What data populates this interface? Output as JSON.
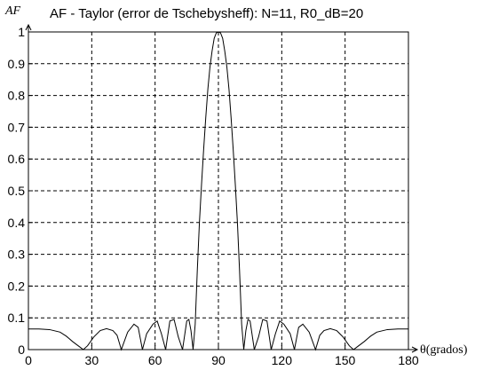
{
  "chart_data": {
    "type": "line",
    "title": "AF - Taylor (error de Tschebysheff): N=11, R0_dB=20",
    "xlabel": "θ(grados)",
    "ylabel": "AF",
    "xlim": [
      0,
      180
    ],
    "ylim": [
      0,
      1
    ],
    "x_ticks": [
      0,
      30,
      60,
      90,
      120,
      150,
      180
    ],
    "y_ticks": [
      0,
      0.1,
      0.2,
      0.3,
      0.4,
      0.5,
      0.6,
      0.7,
      0.8,
      0.9,
      1
    ],
    "x_tick_labels": [
      "0",
      "30",
      "60",
      "90",
      "120",
      "150",
      "180"
    ],
    "y_tick_labels": [
      "0",
      "0.1",
      "0.2",
      "0.3",
      "0.4",
      "0.5",
      "0.6",
      "0.7",
      "0.8",
      "0.9",
      "1"
    ],
    "grid": true,
    "line_color": "#000000",
    "series": [
      {
        "x": [
          0,
          5,
          10,
          15,
          18,
          21,
          24,
          26,
          28,
          31,
          34,
          37,
          40,
          42,
          44,
          47,
          50,
          52,
          54,
          56,
          59,
          61,
          63,
          65,
          67,
          69,
          71,
          73,
          75,
          76,
          77,
          78,
          79,
          80,
          81,
          82,
          83,
          84,
          85,
          86,
          87,
          88,
          89,
          90,
          91,
          92,
          93,
          94,
          95,
          96,
          97,
          98,
          99,
          100,
          101,
          102,
          103,
          104,
          105,
          107,
          109,
          111,
          113,
          115,
          117,
          119,
          121,
          124,
          126,
          128,
          130,
          133,
          136,
          138,
          140,
          143,
          146,
          149,
          152,
          154,
          156,
          159,
          162,
          165,
          170,
          175,
          180
        ],
        "y": [
          0.065,
          0.065,
          0.063,
          0.055,
          0.042,
          0.025,
          0.01,
          0.0,
          0.012,
          0.04,
          0.06,
          0.066,
          0.06,
          0.045,
          0.0,
          0.055,
          0.08,
          0.07,
          0.0,
          0.05,
          0.08,
          0.09,
          0.05,
          0.0,
          0.09,
          0.095,
          0.04,
          0.0,
          0.09,
          0.095,
          0.06,
          0.0,
          0.08,
          0.25,
          0.4,
          0.52,
          0.63,
          0.73,
          0.82,
          0.89,
          0.94,
          0.98,
          0.997,
          1.0,
          0.997,
          0.98,
          0.94,
          0.89,
          0.82,
          0.73,
          0.63,
          0.52,
          0.4,
          0.25,
          0.08,
          0.0,
          0.06,
          0.095,
          0.09,
          0.0,
          0.04,
          0.095,
          0.09,
          0.0,
          0.05,
          0.09,
          0.08,
          0.05,
          0.0,
          0.07,
          0.08,
          0.055,
          0.0,
          0.045,
          0.06,
          0.066,
          0.06,
          0.04,
          0.012,
          0.0,
          0.01,
          0.025,
          0.042,
          0.055,
          0.063,
          0.065,
          0.065
        ]
      }
    ]
  }
}
